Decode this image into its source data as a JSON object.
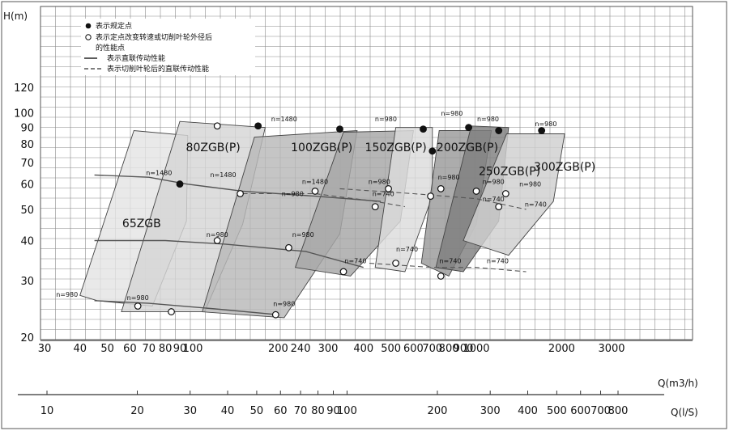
{
  "chart_data": {
    "type": "scatter",
    "title": "",
    "y_axis": {
      "label": "H(m)",
      "scale": "log",
      "range": [
        20,
        150
      ],
      "ticks": [
        20,
        30,
        40,
        50,
        60,
        70,
        80,
        90,
        100,
        120
      ]
    },
    "x_axis": {
      "label": "Q(m3/h)",
      "scale": "log",
      "range": [
        30,
        3000
      ],
      "ticks": [
        "30",
        "40",
        "50",
        "60",
        "70",
        "80",
        "90",
        "100",
        "200",
        "240",
        "300",
        "400",
        "500",
        "600",
        "700",
        "800",
        "900",
        "1000",
        "2000",
        "3000"
      ]
    },
    "x_axis_2": {
      "label": "Q(l/S)",
      "scale": "log",
      "ticks": [
        "10",
        "20",
        "30",
        "40",
        "50",
        "60",
        "70",
        "80",
        "90",
        "100",
        "200",
        "300",
        "400",
        "500",
        "600",
        "700",
        "800"
      ]
    },
    "legend": [
      {
        "marker": "filled-circle",
        "text": "表示规定点"
      },
      {
        "marker": "open-circle",
        "text": "表示定点改变转速或切削叶轮外径后"
      },
      {
        "marker": "none",
        "text": "的性能点"
      },
      {
        "marker": "solid-line",
        "text": "表示直联传动性能"
      },
      {
        "marker": "dashed-line",
        "text": "表示切削叶轮后的直联传动性能"
      }
    ],
    "series_labels": [
      "65ZGB",
      "80ZGB(P)",
      "100ZGB(P)",
      "150ZGB(P)",
      "200ZGB(P)",
      "250ZGB(P)",
      "300ZGB(P)"
    ],
    "speed_labels": [
      {
        "text": "n=1480",
        "q": 76,
        "h": 64
      },
      {
        "text": "n=980",
        "q": 36,
        "h": 26.7
      },
      {
        "text": "n=980",
        "q": 64,
        "h": 26.1
      },
      {
        "text": "n=1480",
        "q": 128,
        "h": 63
      },
      {
        "text": "n=980",
        "q": 122,
        "h": 41
      },
      {
        "text": "n=980",
        "q": 210,
        "h": 25
      },
      {
        "text": "n=1480",
        "q": 210,
        "h": 94
      },
      {
        "text": "n=1480",
        "q": 270,
        "h": 60
      },
      {
        "text": "n=980",
        "q": 225,
        "h": 55
      },
      {
        "text": "n=980",
        "q": 245,
        "h": 41
      },
      {
        "text": "n=740",
        "q": 375,
        "h": 34
      },
      {
        "text": "n=980",
        "q": 480,
        "h": 94
      },
      {
        "text": "n=980",
        "q": 455,
        "h": 60
      },
      {
        "text": "n=740",
        "q": 470,
        "h": 55
      },
      {
        "text": "n=740",
        "q": 570,
        "h": 37
      },
      {
        "text": "n=980",
        "q": 820,
        "h": 98
      },
      {
        "text": "n=980",
        "q": 800,
        "h": 62
      },
      {
        "text": "n=740",
        "q": 810,
        "h": 34
      },
      {
        "text": "n=980",
        "q": 1100,
        "h": 94
      },
      {
        "text": "n=980",
        "q": 1150,
        "h": 60
      },
      {
        "text": "n=740",
        "q": 1150,
        "h": 53
      },
      {
        "text": "n=740",
        "q": 1190,
        "h": 34
      },
      {
        "text": "n=980",
        "q": 1760,
        "h": 91
      },
      {
        "text": "n=980",
        "q": 1550,
        "h": 59
      },
      {
        "text": "n=740",
        "q": 1620,
        "h": 51
      }
    ],
    "rated_points": [
      {
        "q": 90,
        "h": 60
      },
      {
        "q": 170,
        "h": 91
      },
      {
        "q": 330,
        "h": 89
      },
      {
        "q": 650,
        "h": 89
      },
      {
        "q": 700,
        "h": 76
      },
      {
        "q": 940,
        "h": 90
      },
      {
        "q": 1200,
        "h": 88
      },
      {
        "q": 1700,
        "h": 88
      }
    ],
    "modified_points": [
      {
        "q": 64,
        "h": 25
      },
      {
        "q": 84,
        "h": 24
      },
      {
        "q": 122,
        "h": 91
      },
      {
        "q": 122,
        "h": 40
      },
      {
        "q": 147,
        "h": 56
      },
      {
        "q": 196,
        "h": 23.5
      },
      {
        "q": 218,
        "h": 38
      },
      {
        "q": 270,
        "h": 57
      },
      {
        "q": 340,
        "h": 32
      },
      {
        "q": 440,
        "h": 51
      },
      {
        "q": 490,
        "h": 58
      },
      {
        "q": 520,
        "h": 34
      },
      {
        "q": 690,
        "h": 55
      },
      {
        "q": 750,
        "h": 58
      },
      {
        "q": 750,
        "h": 31
      },
      {
        "q": 1000,
        "h": 57
      },
      {
        "q": 1200,
        "h": 51
      },
      {
        "q": 1270,
        "h": 56
      }
    ]
  }
}
